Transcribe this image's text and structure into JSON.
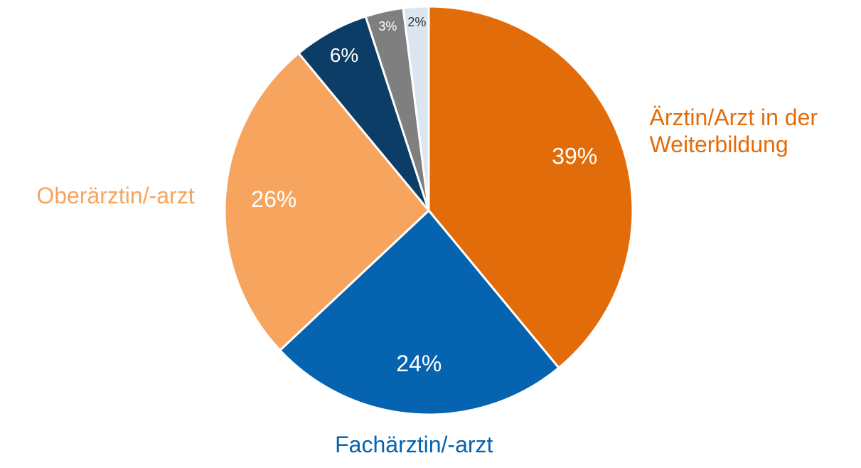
{
  "chart_data": {
    "type": "pie",
    "categories": [
      "Ärztin/Arzt in der Weiterbildung",
      "Fachärztin/-arzt",
      "Oberärztin/-arzt",
      null,
      null,
      null
    ],
    "values": [
      39,
      24,
      26,
      6,
      3,
      2
    ],
    "value_labels": [
      "39%",
      "24%",
      "26%",
      "6%",
      "3%",
      "2%"
    ],
    "colors": [
      "#e36c0a",
      "#0563b0",
      "#f6a45e",
      "#0b3d66",
      "#7f7f7f",
      "#dce6f1"
    ]
  }
}
